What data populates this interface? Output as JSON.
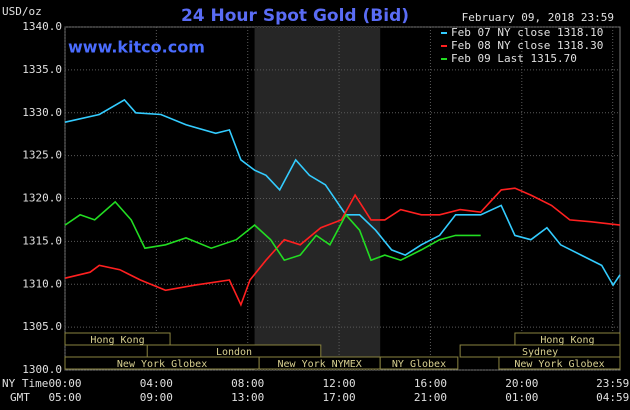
{
  "chart_data": {
    "type": "line",
    "title": "24 Hour Spot Gold (Bid)",
    "timestamp": "February 09, 2018 23:59",
    "watermark": "www.kitco.com",
    "y_label": "USD/oz",
    "x_label": "NY Time",
    "x2_label": "GMT",
    "xlim": [
      0,
      24.3
    ],
    "ylim": [
      1300,
      1340
    ],
    "xticks": [
      {
        "value": 0,
        "label": "00:00"
      },
      {
        "value": 4,
        "label": "04:00"
      },
      {
        "value": 8,
        "label": "08:00"
      },
      {
        "value": 12,
        "label": "12:00"
      },
      {
        "value": 16,
        "label": "16:00"
      },
      {
        "value": 20,
        "label": "20:00"
      },
      {
        "value": 23.98,
        "label": "23:59"
      }
    ],
    "x2ticks": [
      "05:00",
      "09:00",
      "13:00",
      "17:00",
      "21:00",
      "01:00",
      "04:59"
    ],
    "yticks": [
      {
        "value": 1300,
        "label": "1300.0"
      },
      {
        "value": 1305,
        "label": "1305.0"
      },
      {
        "value": 1310,
        "label": "1310.0"
      },
      {
        "value": 1315,
        "label": "1315.0"
      },
      {
        "value": 1320,
        "label": "1320.0"
      },
      {
        "value": 1325,
        "label": "1325.0"
      },
      {
        "value": 1330,
        "label": "1330.0"
      },
      {
        "value": 1335,
        "label": "1335.0"
      },
      {
        "value": 1340,
        "label": "1340.0"
      }
    ],
    "grid": true,
    "shade": [
      8.3,
      13.8
    ],
    "sessions": [
      {
        "name": "Hong Kong",
        "start": 0,
        "end": 4.6,
        "row": 0
      },
      {
        "name": "Hong Kong",
        "start": 19.7,
        "end": 24.3,
        "row": 0
      },
      {
        "name": "London",
        "start": 3.6,
        "end": 11.2,
        "row": 1
      },
      {
        "name": "Sydney",
        "start": 17.3,
        "end": 24.3,
        "row": 1
      },
      {
        "name": "New York Globex",
        "start": 0,
        "end": 8.5,
        "row": 2
      },
      {
        "name": "New York NYMEX",
        "start": 8.5,
        "end": 13.8,
        "row": 2
      },
      {
        "name": "NY Globex",
        "start": 13.8,
        "end": 17.2,
        "row": 2
      },
      {
        "name": "New York Globex",
        "start": 19.0,
        "end": 24.3,
        "row": 2
      }
    ],
    "series": [
      {
        "name": "Feb 07 NY close 1318.10",
        "color": "#33ccff",
        "x": [
          0,
          1.5,
          2.6,
          3.1,
          4.2,
          5.3,
          6.6,
          7.2,
          7.7,
          8.3,
          8.8,
          9.4,
          10.1,
          10.7,
          11.4,
          12.3,
          12.9,
          13.6,
          14.3,
          14.9,
          15.6,
          16.4,
          17.1,
          18.2,
          19.1,
          19.7,
          20.4,
          21.1,
          21.7,
          22.6,
          23.5,
          24.0,
          24.3
        ],
        "values": [
          1328.9,
          1329.8,
          1331.5,
          1330.0,
          1329.8,
          1328.6,
          1327.6,
          1328.0,
          1324.5,
          1323.3,
          1322.7,
          1321.0,
          1324.5,
          1322.7,
          1321.6,
          1318.1,
          1318.1,
          1316.3,
          1314.0,
          1313.4,
          1314.6,
          1315.7,
          1318.1,
          1318.1,
          1319.2,
          1315.7,
          1315.2,
          1316.6,
          1314.6,
          1313.4,
          1312.2,
          1309.9,
          1311.1
        ]
      },
      {
        "name": "Feb 08 NY close 1318.30",
        "color": "#ff2020",
        "x": [
          0,
          1.1,
          1.5,
          2.4,
          3.3,
          4.4,
          5.7,
          7.2,
          7.7,
          8.1,
          8.8,
          9.6,
          10.3,
          11.2,
          12.1,
          12.7,
          13.4,
          14.0,
          14.7,
          15.6,
          16.4,
          17.3,
          18.2,
          19.1,
          19.7,
          20.4,
          21.3,
          22.1,
          23.0,
          24.3
        ],
        "values": [
          1310.7,
          1311.4,
          1312.2,
          1311.7,
          1310.5,
          1309.3,
          1309.9,
          1310.5,
          1307.6,
          1310.5,
          1312.8,
          1315.2,
          1314.6,
          1316.6,
          1317.5,
          1320.4,
          1317.5,
          1317.5,
          1318.7,
          1318.1,
          1318.1,
          1318.7,
          1318.4,
          1321.0,
          1321.2,
          1320.4,
          1319.2,
          1317.5,
          1317.3,
          1316.9
        ]
      },
      {
        "name": "Feb 09 Last 1315.70",
        "color": "#22dd22",
        "x": [
          0,
          0.66,
          1.3,
          2.2,
          2.9,
          3.5,
          4.4,
          5.3,
          6.4,
          7.5,
          8.3,
          9.0,
          9.6,
          10.3,
          11.0,
          11.6,
          12.3,
          12.9,
          13.4,
          14.0,
          14.7,
          15.6,
          16.4,
          17.1,
          18.2
        ],
        "values": [
          1316.9,
          1318.1,
          1317.5,
          1319.6,
          1317.5,
          1314.2,
          1314.6,
          1315.4,
          1314.2,
          1315.2,
          1316.9,
          1315.2,
          1312.8,
          1313.4,
          1315.7,
          1314.6,
          1318.1,
          1316.3,
          1312.8,
          1313.4,
          1312.8,
          1314.0,
          1315.2,
          1315.7,
          1315.7
        ]
      }
    ]
  }
}
